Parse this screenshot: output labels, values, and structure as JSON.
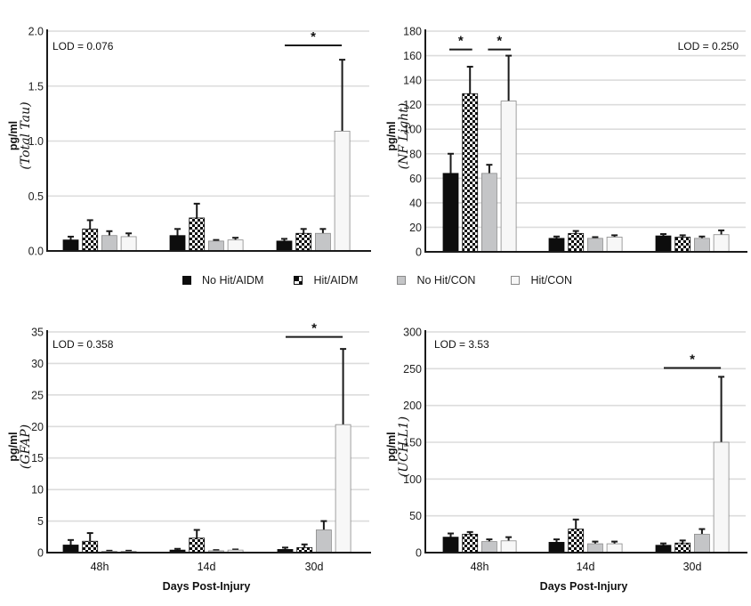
{
  "legend": [
    {
      "label": "No Hit/AIDM",
      "style": "solid-black"
    },
    {
      "label": "Hit/AIDM",
      "style": "checker"
    },
    {
      "label": "No Hit/CON",
      "style": "solid-gray"
    },
    {
      "label": "Hit/CON",
      "style": "white"
    }
  ],
  "colors": {
    "no_hit_aidm": "#0d0d0d",
    "hit_aidm_checker_dark": "#0d0d0d",
    "hit_aidm_checker_light": "#ffffff",
    "no_hit_con": "#c4c5c7",
    "hit_con": "#f7f7f7",
    "gridline": "#dcdcdc",
    "axis": "#1a1a1a"
  },
  "chart_data": [
    {
      "type": "bar",
      "id": "total-tau",
      "ylabel_units": "pg/ml",
      "ylabel_analyte": "(Total Tau)",
      "xlabel": "",
      "show_category_labels": false,
      "lod_text": "LOD = 0.076",
      "lod_position": "top-left",
      "ylim": [
        0,
        2.0
      ],
      "yticks": [
        "0.0",
        "0.5",
        "1.0",
        "1.5",
        "2.0"
      ],
      "ytick_values": [
        0,
        0.5,
        1.0,
        1.5,
        2.0
      ],
      "grid": true,
      "categories": [
        "48h",
        "14d",
        "30d"
      ],
      "series": [
        {
          "name": "No Hit/AIDM",
          "values": [
            0.1,
            0.14,
            0.09
          ],
          "errors": [
            0.03,
            0.06,
            0.02
          ]
        },
        {
          "name": "Hit/AIDM",
          "values": [
            0.2,
            0.3,
            0.16
          ],
          "errors": [
            0.08,
            0.13,
            0.04
          ]
        },
        {
          "name": "No Hit/CON",
          "values": [
            0.14,
            0.09,
            0.16
          ],
          "errors": [
            0.04,
            0.01,
            0.04
          ]
        },
        {
          "name": "Hit/CON",
          "values": [
            0.13,
            0.1,
            1.09
          ],
          "errors": [
            0.03,
            0.02,
            0.65
          ]
        }
      ],
      "significance": [
        {
          "category": "30d",
          "from_series": 0,
          "to_series": 3,
          "label": "*",
          "level": 1.87
        }
      ]
    },
    {
      "type": "bar",
      "id": "nf-light",
      "ylabel_units": "pg/ml",
      "ylabel_analyte": "(NF Light)",
      "xlabel": "",
      "show_category_labels": false,
      "lod_text": "LOD = 0.250",
      "lod_position": "top-right",
      "ylim": [
        0,
        180
      ],
      "yticks": [
        "0",
        "20",
        "40",
        "60",
        "80",
        "100",
        "120",
        "140",
        "160",
        "180"
      ],
      "ytick_values": [
        0,
        20,
        40,
        60,
        80,
        100,
        120,
        140,
        160,
        180
      ],
      "grid": true,
      "categories": [
        "48h",
        "14d",
        "30d"
      ],
      "series": [
        {
          "name": "No Hit/AIDM",
          "values": [
            64,
            11,
            13
          ],
          "errors": [
            16,
            1.5,
            1.5
          ]
        },
        {
          "name": "Hit/AIDM",
          "values": [
            129,
            15,
            12
          ],
          "errors": [
            22,
            2,
            1.5
          ]
        },
        {
          "name": "No Hit/CON",
          "values": [
            64,
            11,
            11
          ],
          "errors": [
            7,
            1,
            1.5
          ]
        },
        {
          "name": "Hit/CON",
          "values": [
            123,
            12,
            14
          ],
          "errors": [
            37,
            1.5,
            3.5
          ]
        }
      ],
      "significance": [
        {
          "category": "48h",
          "from_series": 0,
          "to_series": 1,
          "label": "*",
          "level": 165
        },
        {
          "category": "48h",
          "from_series": 2,
          "to_series": 3,
          "label": "*",
          "level": 165
        }
      ]
    },
    {
      "type": "bar",
      "id": "gfap",
      "ylabel_units": "pg/ml",
      "ylabel_analyte": "(GFAP)",
      "xlabel": "Days Post-Injury",
      "show_category_labels": true,
      "lod_text": "LOD = 0.358",
      "lod_position": "top-left",
      "ylim": [
        0,
        35
      ],
      "yticks": [
        "0",
        "5",
        "10",
        "15",
        "20",
        "25",
        "30",
        "35"
      ],
      "ytick_values": [
        0,
        5,
        10,
        15,
        20,
        25,
        30,
        35
      ],
      "grid": true,
      "categories": [
        "48h",
        "14d",
        "30d"
      ],
      "series": [
        {
          "name": "No Hit/AIDM",
          "values": [
            1.2,
            0.4,
            0.5
          ],
          "errors": [
            0.8,
            0.2,
            0.3
          ]
        },
        {
          "name": "Hit/AIDM",
          "values": [
            1.8,
            2.3,
            0.8
          ],
          "errors": [
            1.3,
            1.3,
            0.5
          ]
        },
        {
          "name": "No Hit/CON",
          "values": [
            0.2,
            0.3,
            3.6
          ],
          "errors": [
            0.1,
            0.1,
            1.4
          ]
        },
        {
          "name": "Hit/CON",
          "values": [
            0.2,
            0.4,
            20.3
          ],
          "errors": [
            0.1,
            0.1,
            12.0
          ]
        }
      ],
      "significance": [
        {
          "category": "30d",
          "from_series": 0,
          "to_series": 3,
          "label": "*",
          "level": 34.2
        }
      ]
    },
    {
      "type": "bar",
      "id": "uch-l1",
      "ylabel_units": "pg/ml",
      "ylabel_analyte": "(UCH L1)",
      "xlabel": "Days Post-Injury",
      "show_category_labels": true,
      "lod_text": "LOD = 3.53",
      "lod_position": "top-left",
      "ylim": [
        0,
        300
      ],
      "yticks": [
        "0",
        "50",
        "100",
        "150",
        "200",
        "250",
        "300"
      ],
      "ytick_values": [
        0,
        50,
        100,
        150,
        200,
        250,
        300
      ],
      "grid": true,
      "categories": [
        "48h",
        "14d",
        "30d"
      ],
      "series": [
        {
          "name": "No Hit/AIDM",
          "values": [
            21,
            14,
            10
          ],
          "errors": [
            5,
            4,
            2.5
          ]
        },
        {
          "name": "Hit/AIDM",
          "values": [
            25,
            32,
            13
          ],
          "errors": [
            3,
            13,
            3.5
          ]
        },
        {
          "name": "No Hit/CON",
          "values": [
            15,
            12,
            25
          ],
          "errors": [
            3,
            3,
            7
          ]
        },
        {
          "name": "Hit/CON",
          "values": [
            16,
            12,
            150
          ],
          "errors": [
            5,
            3,
            89
          ]
        }
      ],
      "significance": [
        {
          "category": "30d",
          "from_series": 0,
          "to_series": 3,
          "label": "*",
          "level": 251
        }
      ]
    }
  ]
}
